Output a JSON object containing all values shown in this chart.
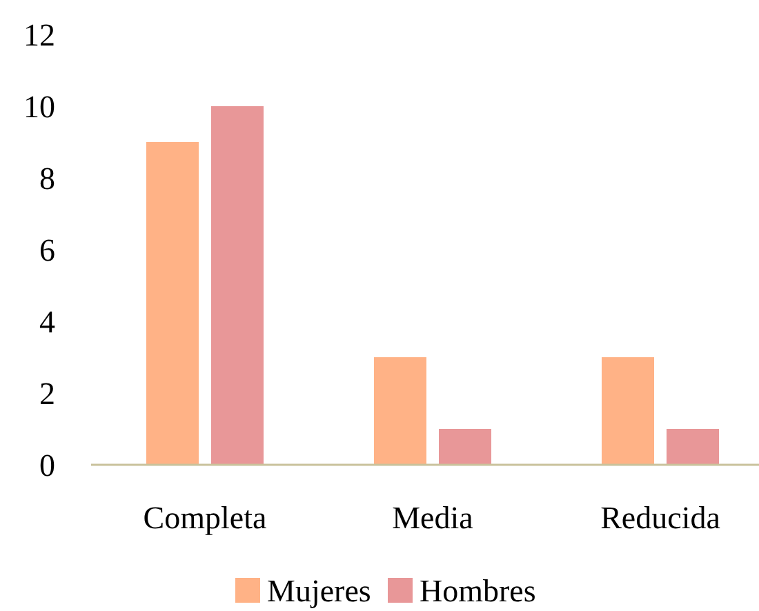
{
  "chart_data": {
    "type": "bar",
    "categories": [
      "Completa",
      "Media",
      "Reducida"
    ],
    "series": [
      {
        "name": "Mujeres",
        "color": "#ffb286",
        "values": [
          9,
          3,
          3
        ]
      },
      {
        "name": "Hombres",
        "color": "#e89798",
        "values": [
          10,
          1,
          1
        ]
      }
    ],
    "ylim": [
      0,
      12
    ],
    "yticks": [
      0,
      2,
      4,
      6,
      8,
      10,
      12
    ],
    "grid": false,
    "legend": "bottom"
  }
}
